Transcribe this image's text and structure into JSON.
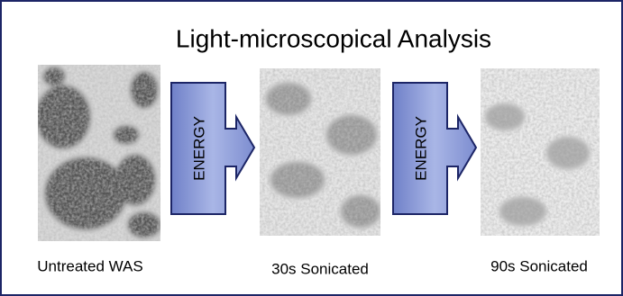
{
  "title": "Light-microscopical Analysis",
  "panels": [
    {
      "caption": "Untreated WAS"
    },
    {
      "caption": "30s Sonicated"
    },
    {
      "caption": "90s Sonicated"
    }
  ],
  "arrows": [
    {
      "label": "ENERGY"
    },
    {
      "label": "ENERGY"
    }
  ]
}
